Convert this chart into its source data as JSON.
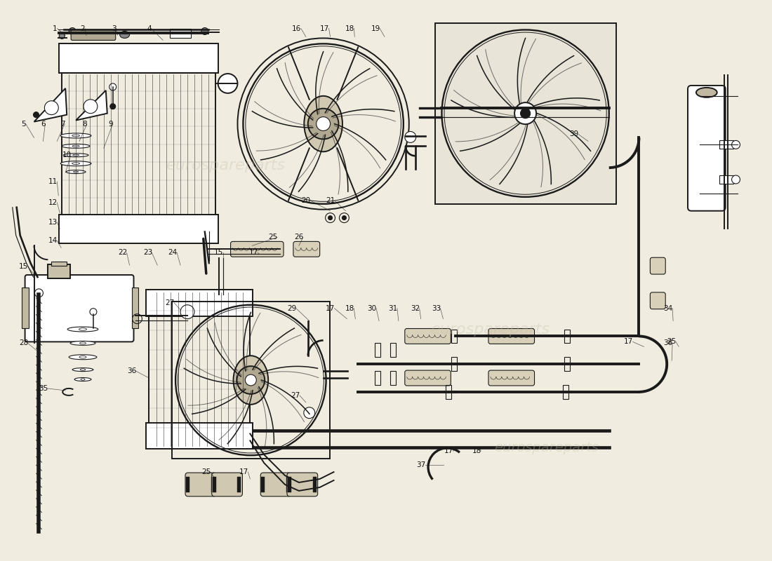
{
  "bg_color": "#f0ece0",
  "line_color": "#1a1a1a",
  "fig_width": 11.0,
  "fig_height": 8.0,
  "dpi": 100,
  "watermark1": "eurospareparts",
  "watermark2": "eurospareparts",
  "pipe_lw": 2.8,
  "main_lw": 1.4,
  "thin_lw": 0.8,
  "label_fs": 7.5
}
